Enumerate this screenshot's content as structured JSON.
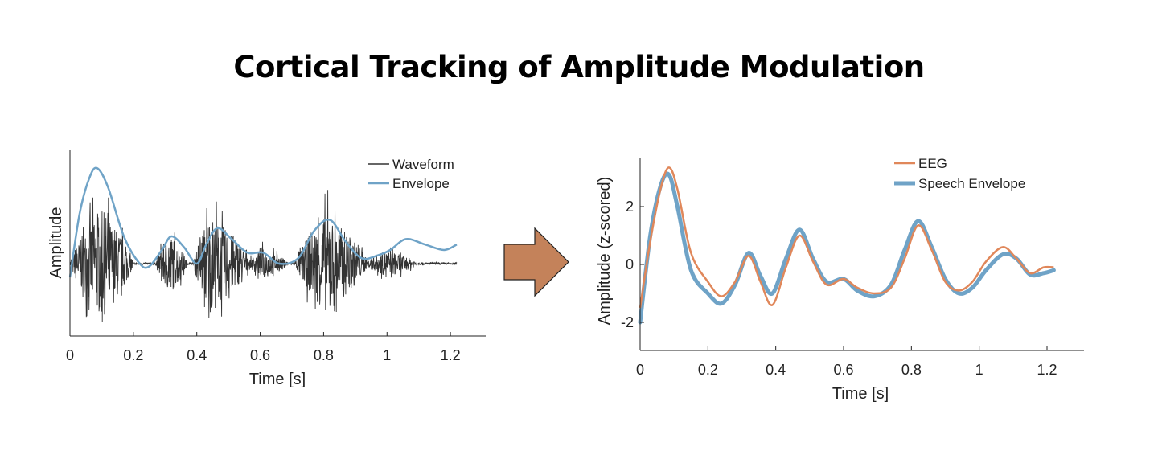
{
  "title": "Cortical Tracking of Amplitude Modulation",
  "colors": {
    "waveform": "#333333",
    "envelope": "#6fa3c7",
    "eeg": "#e0875a",
    "speech_envelope": "#6fa3c7",
    "arrow": "#c4825a"
  },
  "chart_data": [
    {
      "type": "line",
      "xlabel": "Time [s]",
      "ylabel": "Amplitude",
      "xlim": [
        0,
        1.22
      ],
      "xticks": [
        "0",
        "0.2",
        "0.4",
        "0.6",
        "0.8",
        "1",
        "1.2"
      ],
      "xtick_values": [
        0,
        0.2,
        0.4,
        0.6,
        0.8,
        1,
        1.2
      ],
      "ylim": [
        -1.2,
        2.0
      ],
      "legend_position": "top-right",
      "series": [
        {
          "name": "Waveform",
          "bursts": [
            {
              "start": 0.0,
              "end": 0.2,
              "peak": 0.1,
              "amp": 1.0
            },
            {
              "start": 0.27,
              "end": 0.37,
              "peak": 0.315,
              "amp": 0.55
            },
            {
              "start": 0.39,
              "end": 0.57,
              "peak": 0.44,
              "amp": 0.9
            },
            {
              "start": 0.56,
              "end": 0.69,
              "peak": 0.61,
              "amp": 0.28
            },
            {
              "start": 0.71,
              "end": 0.94,
              "peak": 0.81,
              "amp": 0.9
            },
            {
              "start": 0.93,
              "end": 1.1,
              "peak": 1.0,
              "amp": 0.24
            }
          ]
        },
        {
          "name": "Envelope",
          "x": [
            0,
            0.03,
            0.06,
            0.085,
            0.12,
            0.17,
            0.22,
            0.25,
            0.29,
            0.32,
            0.36,
            0.4,
            0.43,
            0.465,
            0.51,
            0.56,
            0.61,
            0.66,
            0.72,
            0.77,
            0.82,
            0.87,
            0.92,
            0.97,
            1.01,
            1.06,
            1.12,
            1.18,
            1.22
          ],
          "y": [
            -0.25,
            0.9,
            1.55,
            1.75,
            1.4,
            0.5,
            0.0,
            -0.05,
            0.25,
            0.5,
            0.3,
            0.0,
            0.35,
            0.65,
            0.45,
            0.2,
            0.2,
            0.0,
            0.1,
            0.6,
            0.8,
            0.4,
            0.1,
            0.15,
            0.25,
            0.45,
            0.35,
            0.25,
            0.35
          ]
        }
      ]
    },
    {
      "type": "line",
      "xlabel": "Time [s]",
      "ylabel": "Amplitude (z-scored)",
      "xlim": [
        0,
        1.25
      ],
      "xticks": [
        "0",
        "0.2",
        "0.4",
        "0.6",
        "0.8",
        "1",
        "1.2"
      ],
      "xtick_values": [
        0,
        0.2,
        0.4,
        0.6,
        0.8,
        1,
        1.2
      ],
      "ylim": [
        -3,
        3.6
      ],
      "yticks": [
        "-2",
        "0",
        "2"
      ],
      "ytick_values": [
        -2,
        0,
        2
      ],
      "legend_position": "top-right",
      "series": [
        {
          "name": "EEG",
          "x": [
            0,
            0.03,
            0.06,
            0.085,
            0.11,
            0.15,
            0.2,
            0.24,
            0.28,
            0.32,
            0.355,
            0.39,
            0.43,
            0.47,
            0.51,
            0.55,
            0.6,
            0.64,
            0.69,
            0.74,
            0.78,
            0.82,
            0.86,
            0.9,
            0.94,
            0.98,
            1.02,
            1.07,
            1.11,
            1.15,
            1.19,
            1.22
          ],
          "y": [
            -1.5,
            0.8,
            2.6,
            3.35,
            2.6,
            0.4,
            -0.6,
            -1.1,
            -0.6,
            0.3,
            -0.6,
            -1.4,
            -0.1,
            1.0,
            0.1,
            -0.7,
            -0.5,
            -0.8,
            -1.0,
            -0.8,
            0.2,
            1.35,
            0.5,
            -0.6,
            -0.9,
            -0.6,
            0.1,
            0.6,
            0.2,
            -0.3,
            -0.1,
            -0.1
          ]
        },
        {
          "name": "Speech Envelope",
          "x": [
            0,
            0.03,
            0.06,
            0.085,
            0.11,
            0.15,
            0.2,
            0.24,
            0.28,
            0.32,
            0.355,
            0.39,
            0.43,
            0.47,
            0.51,
            0.55,
            0.6,
            0.64,
            0.69,
            0.74,
            0.78,
            0.82,
            0.86,
            0.9,
            0.94,
            0.98,
            1.02,
            1.07,
            1.11,
            1.15,
            1.19,
            1.22
          ],
          "y": [
            -2.0,
            1.0,
            2.7,
            3.1,
            2.0,
            -0.2,
            -1.0,
            -1.35,
            -0.7,
            0.4,
            -0.4,
            -1.0,
            0.2,
            1.2,
            0.2,
            -0.6,
            -0.5,
            -0.9,
            -1.1,
            -0.7,
            0.5,
            1.5,
            0.6,
            -0.5,
            -1.0,
            -0.8,
            -0.2,
            0.35,
            0.2,
            -0.35,
            -0.3,
            -0.2
          ]
        }
      ]
    }
  ]
}
